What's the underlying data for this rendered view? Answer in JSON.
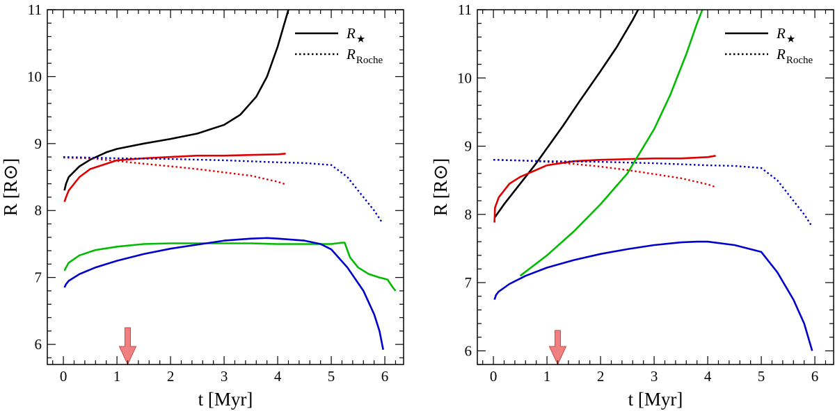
{
  "chart_data": [
    {
      "type": "line",
      "xlabel": "t [Myr]",
      "ylabel": "R [R⊙]",
      "xlim": [
        -0.3,
        6.35
      ],
      "ylim": [
        5.7,
        11
      ],
      "xticks": [
        0,
        1,
        2,
        3,
        4,
        5,
        6
      ],
      "yticks": [
        6,
        7,
        8,
        9,
        10,
        11
      ],
      "legend_placement": "top-right",
      "legend": [
        {
          "label": "R",
          "sub": "★",
          "style": "solid"
        },
        {
          "label": "R",
          "sub": "Roche",
          "style": "dotted"
        }
      ],
      "arrow": {
        "x": 1.2,
        "y_top": 6.25,
        "y_bottom": 5.7,
        "color": "#f08080"
      },
      "series": [
        {
          "color": "#000000",
          "style": "solid",
          "points": [
            [
              0.02,
              8.3
            ],
            [
              0.05,
              8.4
            ],
            [
              0.1,
              8.5
            ],
            [
              0.3,
              8.66
            ],
            [
              0.5,
              8.76
            ],
            [
              0.8,
              8.87
            ],
            [
              1.0,
              8.92
            ],
            [
              1.5,
              9.0
            ],
            [
              2.0,
              9.07
            ],
            [
              2.5,
              9.15
            ],
            [
              3.0,
              9.28
            ],
            [
              3.3,
              9.43
            ],
            [
              3.6,
              9.7
            ],
            [
              3.8,
              10.0
            ],
            [
              4.0,
              10.45
            ],
            [
              4.2,
              11.0
            ]
          ]
        },
        {
          "color": "#dd0000",
          "style": "solid",
          "points": [
            [
              0.02,
              8.13
            ],
            [
              0.05,
              8.2
            ],
            [
              0.1,
              8.3
            ],
            [
              0.3,
              8.5
            ],
            [
              0.5,
              8.62
            ],
            [
              1.0,
              8.75
            ],
            [
              1.5,
              8.78
            ],
            [
              2.0,
              8.8
            ],
            [
              2.5,
              8.82
            ],
            [
              3.0,
              8.82
            ],
            [
              3.5,
              8.83
            ],
            [
              4.0,
              8.84
            ],
            [
              4.15,
              8.85
            ]
          ]
        },
        {
          "color": "#dd0000",
          "style": "dotted",
          "points": [
            [
              0.0,
              8.79
            ],
            [
              0.5,
              8.78
            ],
            [
              1.0,
              8.74
            ],
            [
              1.5,
              8.7
            ],
            [
              2.0,
              8.66
            ],
            [
              2.5,
              8.62
            ],
            [
              3.0,
              8.57
            ],
            [
              3.5,
              8.52
            ],
            [
              4.0,
              8.43
            ],
            [
              4.15,
              8.39
            ]
          ]
        },
        {
          "color": "#0000cc",
          "style": "dotted",
          "points": [
            [
              0.0,
              8.8
            ],
            [
              1.0,
              8.78
            ],
            [
              2.0,
              8.77
            ],
            [
              3.0,
              8.75
            ],
            [
              4.0,
              8.72
            ],
            [
              4.5,
              8.71
            ],
            [
              5.0,
              8.68
            ],
            [
              5.3,
              8.5
            ],
            [
              5.6,
              8.2
            ],
            [
              5.8,
              8.0
            ],
            [
              5.95,
              7.82
            ]
          ]
        },
        {
          "color": "#00bb00",
          "style": "solid",
          "points": [
            [
              0.02,
              7.1
            ],
            [
              0.05,
              7.15
            ],
            [
              0.1,
              7.22
            ],
            [
              0.3,
              7.33
            ],
            [
              0.6,
              7.41
            ],
            [
              1.0,
              7.46
            ],
            [
              1.5,
              7.5
            ],
            [
              2.0,
              7.51
            ],
            [
              2.5,
              7.51
            ],
            [
              3.0,
              7.51
            ],
            [
              3.5,
              7.51
            ],
            [
              4.0,
              7.5
            ],
            [
              4.5,
              7.5
            ],
            [
              5.0,
              7.5
            ],
            [
              5.2,
              7.52
            ],
            [
              5.25,
              7.52
            ],
            [
              5.35,
              7.3
            ],
            [
              5.5,
              7.15
            ],
            [
              5.7,
              7.05
            ],
            [
              5.9,
              7.0
            ],
            [
              6.05,
              6.97
            ],
            [
              6.15,
              6.85
            ],
            [
              6.2,
              6.8
            ]
          ]
        },
        {
          "color": "#0000cc",
          "style": "solid",
          "points": [
            [
              0.02,
              6.85
            ],
            [
              0.05,
              6.9
            ],
            [
              0.1,
              6.95
            ],
            [
              0.3,
              7.05
            ],
            [
              0.6,
              7.15
            ],
            [
              1.0,
              7.25
            ],
            [
              1.5,
              7.35
            ],
            [
              2.0,
              7.43
            ],
            [
              2.5,
              7.49
            ],
            [
              3.0,
              7.55
            ],
            [
              3.5,
              7.58
            ],
            [
              3.8,
              7.59
            ],
            [
              4.0,
              7.58
            ],
            [
              4.5,
              7.55
            ],
            [
              4.8,
              7.5
            ],
            [
              5.0,
              7.42
            ],
            [
              5.3,
              7.15
            ],
            [
              5.6,
              6.8
            ],
            [
              5.8,
              6.45
            ],
            [
              5.9,
              6.2
            ],
            [
              5.97,
              5.92
            ]
          ]
        }
      ]
    },
    {
      "type": "line",
      "xlabel": "t [Myr]",
      "ylabel": "R [R⊙]",
      "xlim": [
        -0.3,
        6.35
      ],
      "ylim": [
        5.8,
        11
      ],
      "xticks": [
        0,
        1,
        2,
        3,
        4,
        5,
        6
      ],
      "yticks": [
        6,
        7,
        8,
        9,
        10,
        11
      ],
      "legend_placement": "top-right",
      "legend": [
        {
          "label": "R",
          "sub": "★",
          "style": "solid"
        },
        {
          "label": "R",
          "sub": "Roche",
          "style": "dotted"
        }
      ],
      "arrow": {
        "x": 1.2,
        "y_top": 6.3,
        "y_bottom": 5.8,
        "color": "#f08080"
      },
      "series": [
        {
          "color": "#000000",
          "style": "solid",
          "points": [
            [
              0.02,
              7.95
            ],
            [
              0.2,
              8.15
            ],
            [
              0.5,
              8.45
            ],
            [
              0.8,
              8.75
            ],
            [
              1.0,
              8.97
            ],
            [
              1.3,
              9.3
            ],
            [
              1.6,
              9.65
            ],
            [
              2.0,
              10.1
            ],
            [
              2.3,
              10.45
            ],
            [
              2.6,
              10.85
            ],
            [
              2.7,
              11.0
            ]
          ]
        },
        {
          "color": "#dd0000",
          "style": "solid",
          "points": [
            [
              0.02,
              7.88
            ],
            [
              0.03,
              8.1
            ],
            [
              0.1,
              8.25
            ],
            [
              0.3,
              8.45
            ],
            [
              0.5,
              8.55
            ],
            [
              1.0,
              8.72
            ],
            [
              1.5,
              8.78
            ],
            [
              2.0,
              8.8
            ],
            [
              2.5,
              8.81
            ],
            [
              3.0,
              8.82
            ],
            [
              3.5,
              8.82
            ],
            [
              4.0,
              8.84
            ],
            [
              4.15,
              8.86
            ]
          ]
        },
        {
          "color": "#dd0000",
          "style": "dotted",
          "points": [
            [
              0.0,
              8.8
            ],
            [
              0.5,
              8.79
            ],
            [
              1.0,
              8.77
            ],
            [
              1.5,
              8.74
            ],
            [
              2.0,
              8.7
            ],
            [
              2.5,
              8.65
            ],
            [
              3.0,
              8.59
            ],
            [
              3.5,
              8.53
            ],
            [
              4.0,
              8.44
            ],
            [
              4.15,
              8.4
            ]
          ]
        },
        {
          "color": "#0000cc",
          "style": "dotted",
          "points": [
            [
              0.0,
              8.8
            ],
            [
              1.0,
              8.78
            ],
            [
              2.0,
              8.77
            ],
            [
              3.0,
              8.75
            ],
            [
              4.0,
              8.72
            ],
            [
              4.5,
              8.71
            ],
            [
              5.0,
              8.68
            ],
            [
              5.3,
              8.5
            ],
            [
              5.6,
              8.2
            ],
            [
              5.8,
              8.0
            ],
            [
              5.95,
              7.82
            ]
          ]
        },
        {
          "color": "#00bb00",
          "style": "solid",
          "points": [
            [
              0.5,
              7.1
            ],
            [
              1.0,
              7.4
            ],
            [
              1.5,
              7.75
            ],
            [
              2.0,
              8.15
            ],
            [
              2.5,
              8.6
            ],
            [
              3.0,
              9.25
            ],
            [
              3.3,
              9.75
            ],
            [
              3.6,
              10.35
            ],
            [
              3.8,
              10.8
            ],
            [
              3.9,
              11.0
            ]
          ]
        },
        {
          "color": "#0000cc",
          "style": "solid",
          "points": [
            [
              0.02,
              6.75
            ],
            [
              0.05,
              6.82
            ],
            [
              0.1,
              6.87
            ],
            [
              0.3,
              6.98
            ],
            [
              0.6,
              7.1
            ],
            [
              1.0,
              7.22
            ],
            [
              1.5,
              7.33
            ],
            [
              2.0,
              7.42
            ],
            [
              2.5,
              7.49
            ],
            [
              3.0,
              7.55
            ],
            [
              3.5,
              7.59
            ],
            [
              3.8,
              7.6
            ],
            [
              4.0,
              7.6
            ],
            [
              4.5,
              7.55
            ],
            [
              5.0,
              7.45
            ],
            [
              5.3,
              7.15
            ],
            [
              5.6,
              6.75
            ],
            [
              5.8,
              6.4
            ],
            [
              5.95,
              6.0
            ]
          ]
        }
      ]
    }
  ]
}
